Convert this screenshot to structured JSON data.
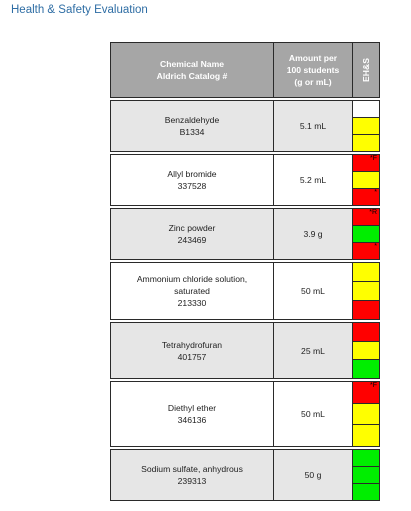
{
  "title": "Health & Safety Evaluation",
  "header": {
    "chemical_line1": "Chemical Name",
    "chemical_line2": "Aldrich Catalog #",
    "amount_line1": "Amount per",
    "amount_line2": "100 students",
    "amount_line3": "(g or mL)",
    "ehs": "EH&S"
  },
  "rows": [
    {
      "name_lines": [
        "Benzaldehyde",
        "B1334"
      ],
      "amount": "5.1 mL",
      "style": "alt",
      "cells": [
        {
          "c": "w",
          "t": ""
        },
        {
          "c": "y",
          "t": ""
        },
        {
          "c": "y",
          "t": ""
        }
      ]
    },
    {
      "name_lines": [
        "Allyl bromide",
        "337528"
      ],
      "amount": "5.2 mL",
      "style": "norm",
      "cells": [
        {
          "c": "r",
          "t": "*F"
        },
        {
          "c": "y",
          "t": ""
        },
        {
          "c": "r",
          "t": "*"
        }
      ]
    },
    {
      "name_lines": [
        "Zinc powder",
        "243469"
      ],
      "amount": "3.9 g",
      "style": "alt",
      "cells": [
        {
          "c": "r",
          "t": "*R"
        },
        {
          "c": "g",
          "t": ""
        },
        {
          "c": "r",
          "t": "*"
        }
      ]
    },
    {
      "name_lines": [
        "Ammonium chloride solution,",
        "saturated",
        "213330"
      ],
      "amount": "50 mL",
      "style": "norm",
      "cells": [
        {
          "c": "y",
          "t": ""
        },
        {
          "c": "y",
          "t": ""
        },
        {
          "c": "r",
          "t": ""
        }
      ]
    },
    {
      "name_lines": [
        "Tetrahydrofuran",
        "401757"
      ],
      "amount": "25 mL",
      "style": "alt",
      "cells": [
        {
          "c": "r",
          "t": ""
        },
        {
          "c": "y",
          "t": ""
        },
        {
          "c": "g",
          "t": ""
        }
      ]
    },
    {
      "name_lines": [
        "Diethyl ether",
        "346136"
      ],
      "amount": "50 mL",
      "style": "norm",
      "cells": [
        {
          "c": "r",
          "t": "*F"
        },
        {
          "c": "y",
          "t": ""
        },
        {
          "c": "y",
          "t": ""
        }
      ]
    },
    {
      "name_lines": [
        "Sodium sulfate, anhydrous",
        "239313"
      ],
      "amount": "50 g",
      "style": "alt",
      "cells": [
        {
          "c": "g",
          "t": ""
        },
        {
          "c": "g",
          "t": ""
        },
        {
          "c": "g",
          "t": ""
        }
      ]
    }
  ]
}
